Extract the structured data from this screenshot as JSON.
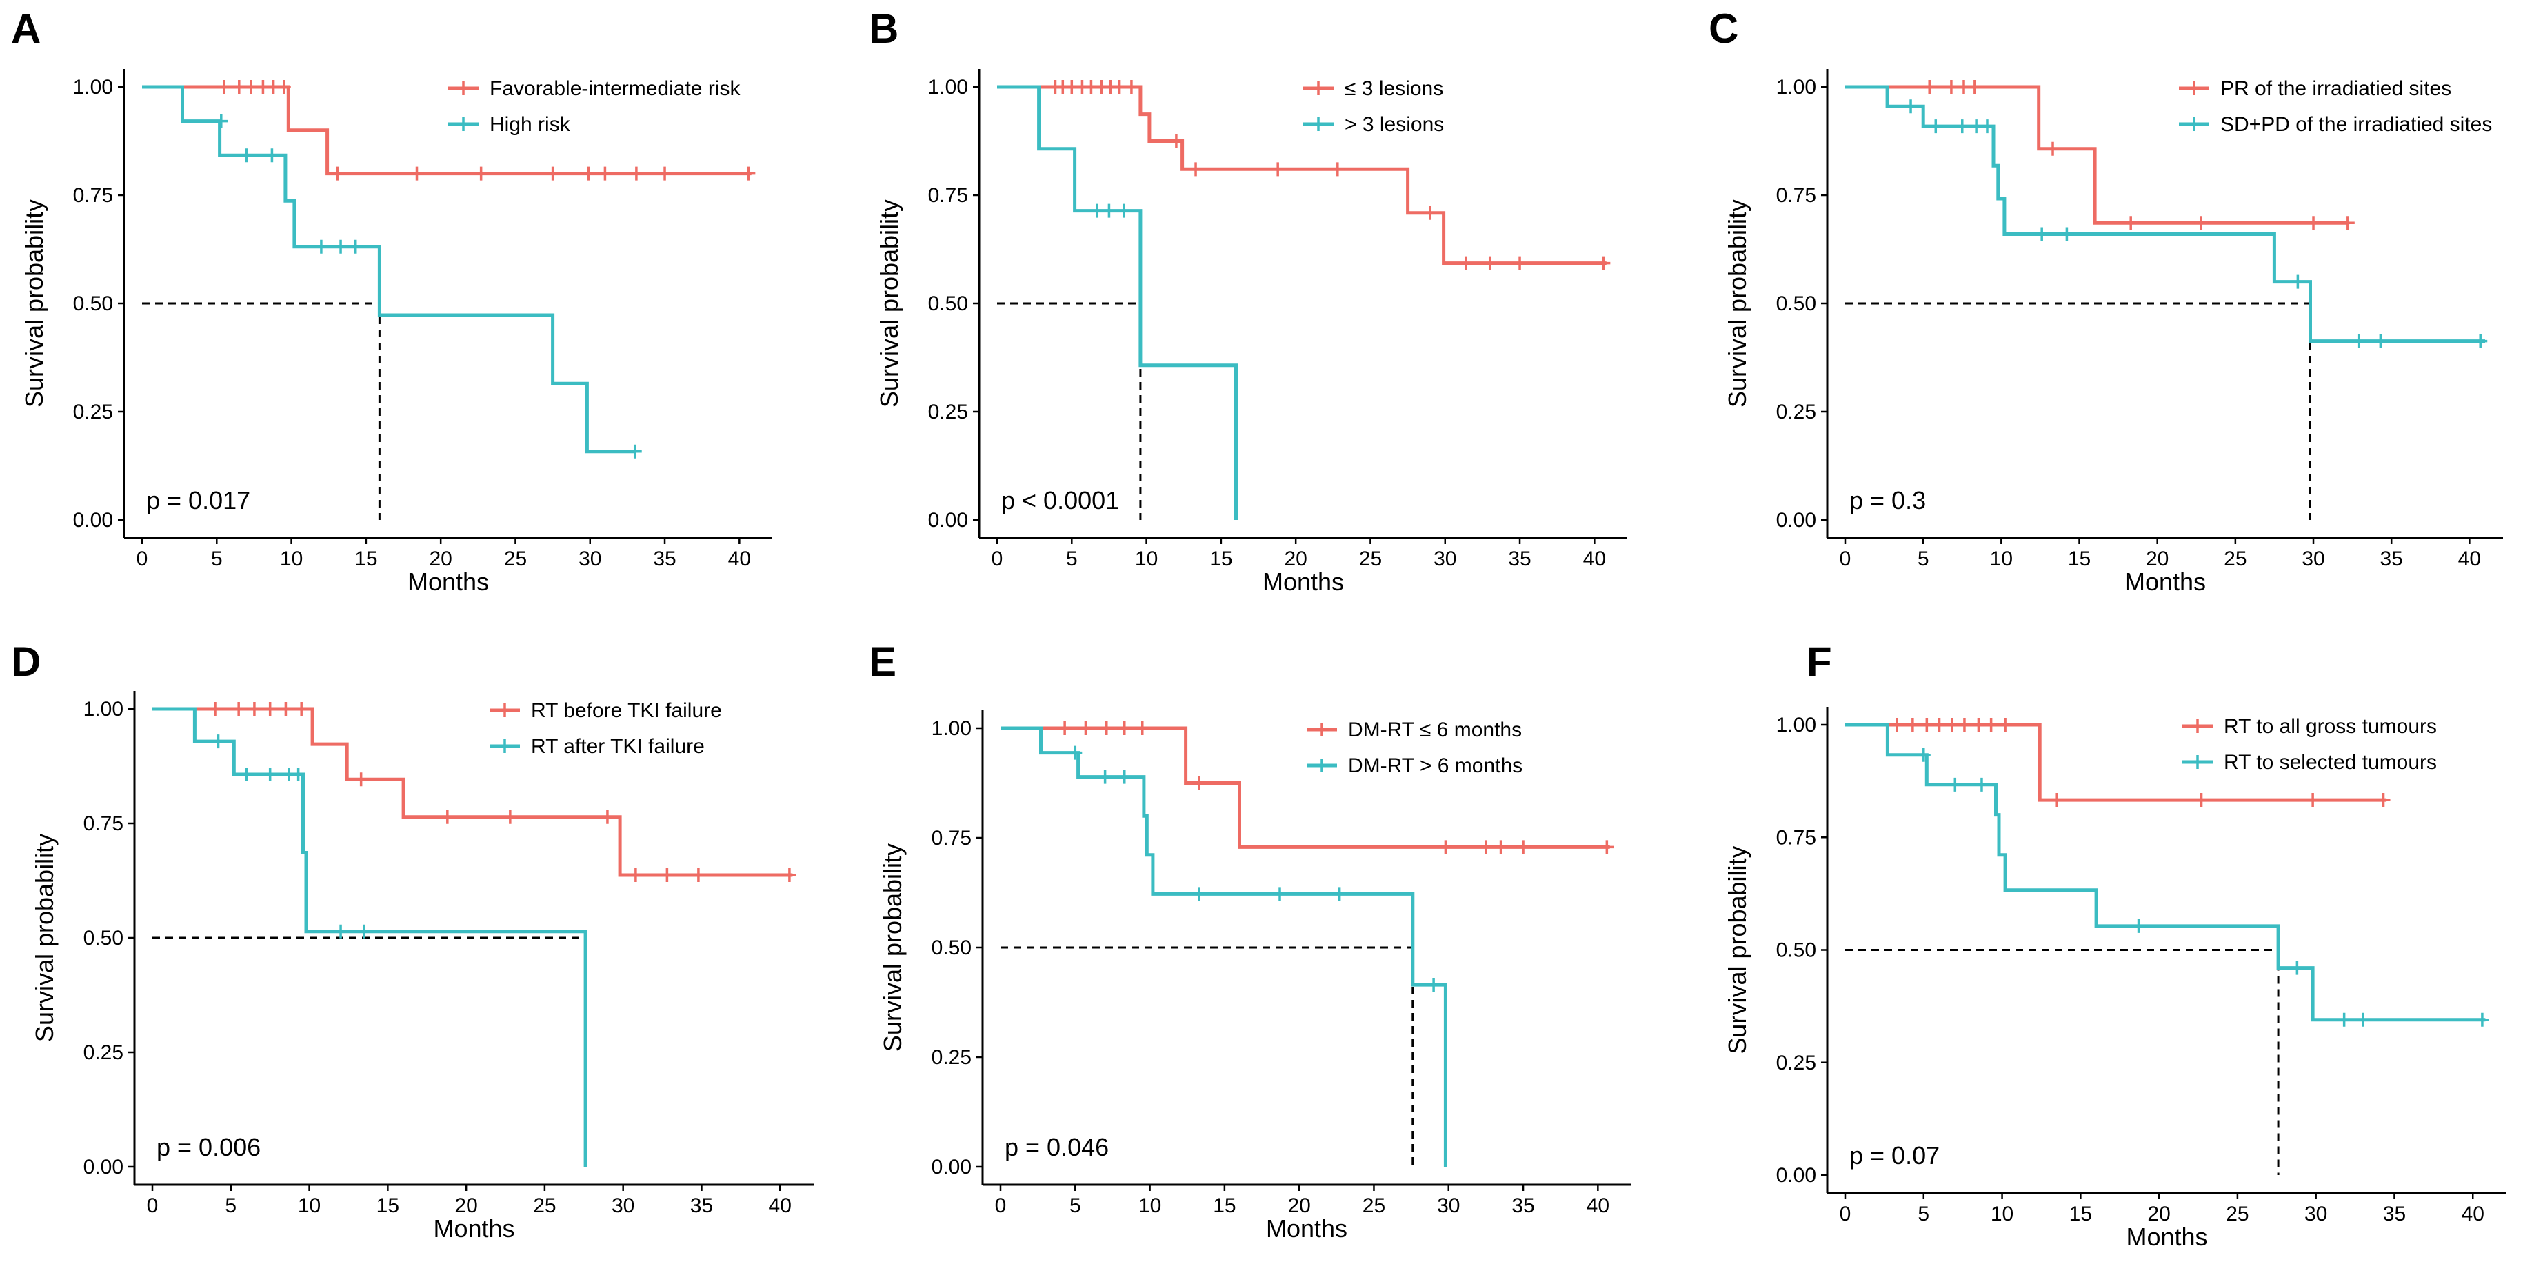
{
  "colors": {
    "series1": "#ee6b63",
    "series2": "#3bbcc2",
    "axis": "#000000",
    "reference": "#000000"
  },
  "chart_data": [
    {
      "panel": "A",
      "type": "line",
      "step": true,
      "xlabel": "Months",
      "ylabel": "Survival probability",
      "xlim": [
        0,
        41
      ],
      "ylim": [
        0,
        1
      ],
      "xticks": [
        0,
        5,
        10,
        15,
        20,
        25,
        30,
        35,
        40
      ],
      "yticks": [
        "0.00",
        "0.25",
        "0.50",
        "0.75",
        "1.00"
      ],
      "pvalue": "p = 0.017",
      "median_ref": {
        "y": 0.5,
        "x": [
          15.9
        ]
      },
      "series": [
        {
          "name": "Favorable-intermediate risk",
          "color": "#ee6b63",
          "steps": [
            [
              0,
              1
            ],
            [
              9.8,
              0.9
            ],
            [
              12.4,
              0.8
            ],
            [
              40.8,
              0.8
            ]
          ],
          "censor": [
            [
              5.5,
              1
            ],
            [
              6.5,
              1
            ],
            [
              7.3,
              1
            ],
            [
              8.1,
              1
            ],
            [
              8.8,
              1
            ],
            [
              9.5,
              1
            ],
            [
              13.1,
              0.8
            ],
            [
              18.4,
              0.8
            ],
            [
              22.7,
              0.8
            ],
            [
              27.5,
              0.8
            ],
            [
              29.9,
              0.8
            ],
            [
              31,
              0.8
            ],
            [
              33.1,
              0.8
            ],
            [
              35,
              0.8
            ],
            [
              40.6,
              0.8
            ]
          ]
        },
        {
          "name": "High risk",
          "color": "#3bbcc2",
          "steps": [
            [
              0,
              1
            ],
            [
              2.7,
              0.921
            ],
            [
              5.2,
              0.842
            ],
            [
              9.6,
              0.737
            ],
            [
              10.2,
              0.631
            ],
            [
              15.9,
              0.473
            ],
            [
              27.5,
              0.315
            ],
            [
              29.8,
              0.158
            ],
            [
              33,
              0.158
            ]
          ],
          "censor": [
            [
              5.3,
              0.921
            ],
            [
              7,
              0.842
            ],
            [
              8.7,
              0.842
            ],
            [
              12,
              0.631
            ],
            [
              13.3,
              0.631
            ],
            [
              14.3,
              0.631
            ],
            [
              33,
              0.158
            ]
          ]
        }
      ]
    },
    {
      "panel": "B",
      "type": "line",
      "step": true,
      "xlabel": "Months",
      "ylabel": "Survival probability",
      "xlim": [
        0,
        41
      ],
      "ylim": [
        0,
        1
      ],
      "xticks": [
        0,
        5,
        10,
        15,
        20,
        25,
        30,
        35,
        40
      ],
      "yticks": [
        "0.00",
        "0.25",
        "0.50",
        "0.75",
        "1.00"
      ],
      "pvalue": "p < 0.0001",
      "median_ref": {
        "y": 0.5,
        "x": [
          9.6
        ]
      },
      "series": [
        {
          "name": "≤ 3 lesions",
          "color": "#ee6b63",
          "steps": [
            [
              0,
              1
            ],
            [
              9.6,
              0.937
            ],
            [
              10.2,
              0.875
            ],
            [
              12.4,
              0.81
            ],
            [
              27.5,
              0.709
            ],
            [
              29.9,
              0.593
            ],
            [
              40.8,
              0.593
            ]
          ],
          "censor": [
            [
              3.9,
              1
            ],
            [
              4.4,
              1
            ],
            [
              5,
              1
            ],
            [
              5.7,
              1
            ],
            [
              6.3,
              1
            ],
            [
              7,
              1
            ],
            [
              7.6,
              1
            ],
            [
              8.2,
              1
            ],
            [
              9,
              1
            ],
            [
              12,
              0.875
            ],
            [
              13.3,
              0.81
            ],
            [
              18.8,
              0.81
            ],
            [
              22.8,
              0.81
            ],
            [
              29,
              0.709
            ],
            [
              31.4,
              0.593
            ],
            [
              33,
              0.593
            ],
            [
              35,
              0.593
            ],
            [
              40.6,
              0.593
            ]
          ]
        },
        {
          "name": "> 3 lesions",
          "color": "#3bbcc2",
          "steps": [
            [
              0,
              1
            ],
            [
              2.8,
              0.857
            ],
            [
              5.2,
              0.714
            ],
            [
              9.6,
              0.357
            ],
            [
              16,
              0
            ]
          ],
          "censor": [
            [
              6.7,
              0.714
            ],
            [
              7.5,
              0.714
            ],
            [
              8.5,
              0.714
            ]
          ]
        }
      ]
    },
    {
      "panel": "C",
      "type": "line",
      "step": true,
      "xlabel": "Months",
      "ylabel": "Survival probability",
      "xlim": [
        0,
        41
      ],
      "ylim": [
        0,
        1
      ],
      "xticks": [
        0,
        5,
        10,
        15,
        20,
        25,
        30,
        35,
        40
      ],
      "yticks": [
        "0.00",
        "0.25",
        "0.50",
        "0.75",
        "1.00"
      ],
      "pvalue": "p = 0.3",
      "median_ref": {
        "y": 0.5,
        "x": [
          29.8
        ]
      },
      "series": [
        {
          "name": "PR of the irradiatied sites",
          "color": "#ee6b63",
          "steps": [
            [
              0,
              1
            ],
            [
              12.4,
              0.857
            ],
            [
              16,
              0.686
            ],
            [
              32.3,
              0.686
            ]
          ],
          "censor": [
            [
              5.4,
              1
            ],
            [
              6.8,
              1
            ],
            [
              7.6,
              1
            ],
            [
              8.3,
              1
            ],
            [
              13.3,
              0.857
            ],
            [
              18.3,
              0.686
            ],
            [
              22.8,
              0.686
            ],
            [
              30,
              0.686
            ],
            [
              32.2,
              0.686
            ]
          ]
        },
        {
          "name": "SD+PD of the irradiatied sites",
          "color": "#3bbcc2",
          "steps": [
            [
              0,
              1
            ],
            [
              2.7,
              0.955
            ],
            [
              5,
              0.909
            ],
            [
              9.5,
              0.818
            ],
            [
              9.8,
              0.742
            ],
            [
              10.2,
              0.66
            ],
            [
              27.5,
              0.55
            ],
            [
              29.8,
              0.413
            ],
            [
              41,
              0.413
            ]
          ],
          "censor": [
            [
              4.2,
              0.955
            ],
            [
              5.8,
              0.909
            ],
            [
              7.5,
              0.909
            ],
            [
              8.4,
              0.909
            ],
            [
              9.1,
              0.909
            ],
            [
              12.6,
              0.66
            ],
            [
              14.2,
              0.66
            ],
            [
              29,
              0.55
            ],
            [
              32.9,
              0.413
            ],
            [
              34.3,
              0.413
            ],
            [
              40.7,
              0.413
            ]
          ]
        }
      ]
    },
    {
      "panel": "D",
      "type": "line",
      "step": true,
      "xlabel": "Months",
      "ylabel": "Survival probability",
      "xlim": [
        0,
        41
      ],
      "ylim": [
        0,
        1
      ],
      "xticks": [
        0,
        5,
        10,
        15,
        20,
        25,
        30,
        35,
        40
      ],
      "yticks": [
        "0.00",
        "0.25",
        "0.50",
        "0.75",
        "1.00"
      ],
      "pvalue": "p = 0.006",
      "median_ref": {
        "y": 0.5,
        "x": [
          27.6
        ]
      },
      "series": [
        {
          "name": "RT before TKI failure",
          "color": "#ee6b63",
          "steps": [
            [
              0,
              1
            ],
            [
              10.2,
              0.923
            ],
            [
              12.4,
              0.846
            ],
            [
              16,
              0.764
            ],
            [
              29.8,
              0.637
            ],
            [
              40.8,
              0.637
            ]
          ],
          "censor": [
            [
              4,
              1
            ],
            [
              5.5,
              1
            ],
            [
              6.5,
              1
            ],
            [
              7.5,
              1
            ],
            [
              8.5,
              1
            ],
            [
              9.5,
              1
            ],
            [
              13.3,
              0.846
            ],
            [
              18.8,
              0.764
            ],
            [
              22.8,
              0.764
            ],
            [
              29,
              0.764
            ],
            [
              30.8,
              0.637
            ],
            [
              32.8,
              0.637
            ],
            [
              34.8,
              0.637
            ],
            [
              40.6,
              0.637
            ]
          ]
        },
        {
          "name": "RT after TKI failure",
          "color": "#3bbcc2",
          "steps": [
            [
              0,
              1
            ],
            [
              2.7,
              0.929
            ],
            [
              5.2,
              0.857
            ],
            [
              9.6,
              0.686
            ],
            [
              9.8,
              0.514
            ],
            [
              27.6,
              0
            ]
          ],
          "censor": [
            [
              4.2,
              0.929
            ],
            [
              6,
              0.857
            ],
            [
              7.5,
              0.857
            ],
            [
              8.7,
              0.857
            ],
            [
              9.3,
              0.857
            ],
            [
              12,
              0.514
            ],
            [
              13.5,
              0.514
            ]
          ]
        }
      ]
    },
    {
      "panel": "E",
      "type": "line",
      "step": true,
      "xlabel": "Months",
      "ylabel": "Survival probability",
      "xlim": [
        0,
        41
      ],
      "ylim": [
        0,
        1
      ],
      "xticks": [
        0,
        5,
        10,
        15,
        20,
        25,
        30,
        35,
        40
      ],
      "yticks": [
        "0.00",
        "0.25",
        "0.50",
        "0.75",
        "1.00"
      ],
      "pvalue": "p = 0.046",
      "median_ref": {
        "y": 0.5,
        "x": [
          27.6
        ]
      },
      "series": [
        {
          "name": "DM-RT ≤ 6 months",
          "color": "#ee6b63",
          "steps": [
            [
              0,
              1
            ],
            [
              12.4,
              0.875
            ],
            [
              16,
              0.729
            ],
            [
              40.8,
              0.729
            ]
          ],
          "censor": [
            [
              4.3,
              1
            ],
            [
              5.7,
              1
            ],
            [
              7.1,
              1
            ],
            [
              8.3,
              1
            ],
            [
              9.5,
              1
            ],
            [
              13.3,
              0.875
            ],
            [
              29.8,
              0.729
            ],
            [
              32.5,
              0.729
            ],
            [
              33.5,
              0.729
            ],
            [
              35,
              0.729
            ],
            [
              40.6,
              0.729
            ]
          ]
        },
        {
          "name": "DM-RT > 6 months",
          "color": "#3bbcc2",
          "steps": [
            [
              0,
              1
            ],
            [
              2.7,
              0.944
            ],
            [
              5.2,
              0.889
            ],
            [
              9.6,
              0.8
            ],
            [
              9.8,
              0.711
            ],
            [
              10.2,
              0.622
            ],
            [
              27.6,
              0.415
            ],
            [
              29.8,
              0
            ]
          ],
          "censor": [
            [
              5,
              0.944
            ],
            [
              7,
              0.889
            ],
            [
              8.3,
              0.889
            ],
            [
              13.3,
              0.622
            ],
            [
              18.7,
              0.622
            ],
            [
              22.7,
              0.622
            ],
            [
              29,
              0.415
            ]
          ]
        }
      ]
    },
    {
      "panel": "F",
      "type": "line",
      "step": true,
      "xlabel": "Months",
      "ylabel": "Survival probability",
      "xlim": [
        0,
        41
      ],
      "ylim": [
        0,
        1
      ],
      "xticks": [
        0,
        5,
        10,
        15,
        20,
        25,
        30,
        35,
        40
      ],
      "yticks": [
        "0.00",
        "0.25",
        "0.50",
        "0.75",
        "1.00"
      ],
      "pvalue": "p = 0.07",
      "median_ref": {
        "y": 0.5,
        "x": [
          27.6
        ]
      },
      "series": [
        {
          "name": "RT to all gross tumours",
          "color": "#ee6b63",
          "steps": [
            [
              0,
              1
            ],
            [
              12.4,
              0.833
            ],
            [
              34.5,
              0.833
            ]
          ],
          "censor": [
            [
              3.3,
              1
            ],
            [
              4.3,
              1
            ],
            [
              5.2,
              1
            ],
            [
              6,
              1
            ],
            [
              6.8,
              1
            ],
            [
              7.6,
              1
            ],
            [
              8.5,
              1
            ],
            [
              9.3,
              1
            ],
            [
              10.2,
              1
            ],
            [
              13.5,
              0.833
            ],
            [
              22.7,
              0.833
            ],
            [
              29.8,
              0.833
            ],
            [
              34.3,
              0.833
            ]
          ]
        },
        {
          "name": "RT to selected  tumours",
          "color": "#3bbcc2",
          "steps": [
            [
              0,
              1
            ],
            [
              2.7,
              0.933
            ],
            [
              5.2,
              0.867
            ],
            [
              9.6,
              0.8
            ],
            [
              9.8,
              0.711
            ],
            [
              10.2,
              0.633
            ],
            [
              16,
              0.553
            ],
            [
              27.6,
              0.46
            ],
            [
              29.8,
              0.345
            ],
            [
              40.8,
              0.345
            ]
          ],
          "censor": [
            [
              5,
              0.933
            ],
            [
              7,
              0.867
            ],
            [
              8.7,
              0.867
            ],
            [
              18.7,
              0.553
            ],
            [
              28.8,
              0.46
            ],
            [
              31.8,
              0.345
            ],
            [
              33,
              0.345
            ],
            [
              40.6,
              0.345
            ]
          ]
        }
      ]
    }
  ]
}
